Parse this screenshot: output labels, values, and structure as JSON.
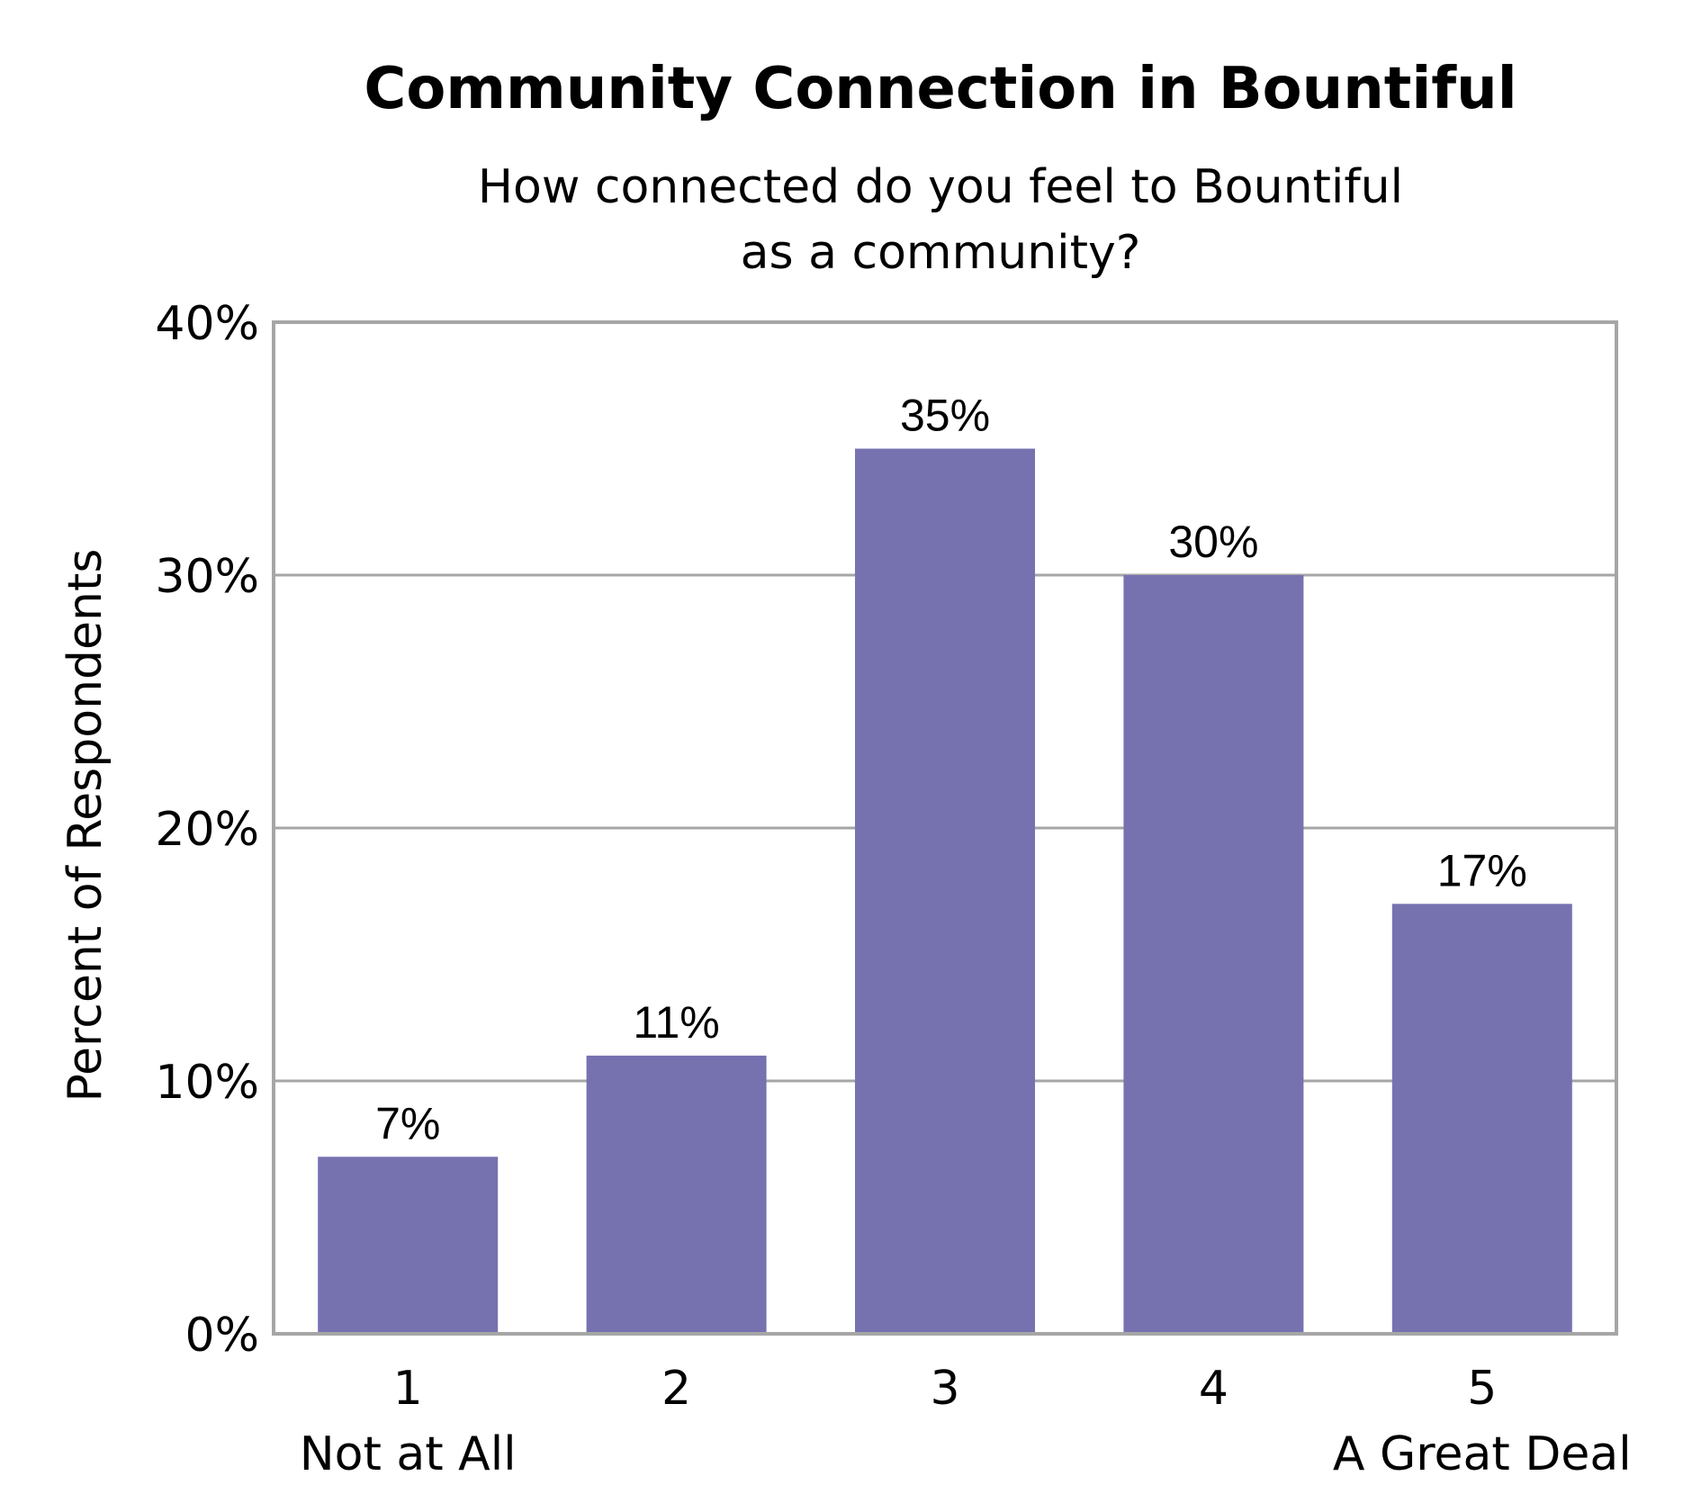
{
  "chart_data": {
    "type": "bar",
    "title": "Community Connection in Bountiful",
    "subtitle_lines": [
      "How connected do you feel to Bountiful",
      "as a community?"
    ],
    "ylabel": "Percent of Respondents",
    "xlabel": "",
    "categories": [
      "1",
      "2",
      "3",
      "4",
      "5"
    ],
    "category_sublabels": [
      "Not at All",
      "",
      "",
      "",
      "A Great Deal"
    ],
    "values": [
      7,
      11,
      35,
      30,
      17
    ],
    "value_labels": [
      "7%",
      "11%",
      "35%",
      "30%",
      "17%"
    ],
    "ylim": [
      0,
      40
    ],
    "yticks": [
      0,
      10,
      20,
      30,
      40
    ],
    "ytick_labels": [
      "0%",
      "10%",
      "20%",
      "30%",
      "40%"
    ],
    "grid": true,
    "legend": "none",
    "bar_color": "#7672b0",
    "gridline_color": "#a6a6a6",
    "frame_color": "#a6a6a6"
  }
}
